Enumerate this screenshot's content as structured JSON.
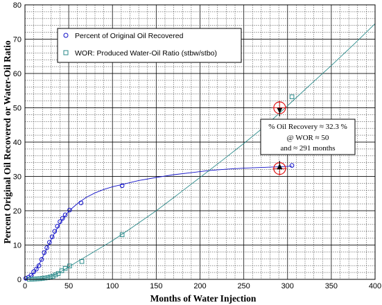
{
  "chart_data": {
    "type": "scatter",
    "xlabel": "Months of Water Injection",
    "ylabel": "Percent Original Oil Recovered  or  Water-Oil Ratio",
    "xlim": [
      0,
      400
    ],
    "ylim": [
      0,
      80
    ],
    "x_ticks": [
      0,
      50,
      100,
      150,
      200,
      250,
      300,
      350,
      400
    ],
    "y_ticks": [
      0,
      10,
      20,
      30,
      40,
      50,
      60,
      70,
      80
    ],
    "grid": true,
    "legend_position": "top-left",
    "series": [
      {
        "name": "Percent of Original Oil Recovered",
        "marker": "circle",
        "color": "#1010c8",
        "points": [
          [
            1,
            0.3
          ],
          [
            4,
            0.6
          ],
          [
            7,
            1.2
          ],
          [
            10,
            2.2
          ],
          [
            13,
            3.0
          ],
          [
            16,
            4.0
          ],
          [
            19,
            5.8
          ],
          [
            22,
            7.8
          ],
          [
            25,
            9.2
          ],
          [
            28,
            10.8
          ],
          [
            31,
            12.4
          ],
          [
            34,
            14.0
          ],
          [
            37,
            15.5
          ],
          [
            40,
            16.8
          ],
          [
            43,
            17.8
          ],
          [
            46,
            18.8
          ],
          [
            51,
            20.2
          ],
          [
            64,
            22.3
          ],
          [
            111,
            27.3
          ],
          [
            305,
            33.2
          ]
        ],
        "curve": [
          [
            0,
            0
          ],
          [
            5,
            0.6
          ],
          [
            10,
            1.8
          ],
          [
            15,
            3.8
          ],
          [
            20,
            6.3
          ],
          [
            25,
            9.0
          ],
          [
            30,
            11.6
          ],
          [
            35,
            14.0
          ],
          [
            40,
            16.3
          ],
          [
            45,
            18.2
          ],
          [
            50,
            19.8
          ],
          [
            55,
            21.0
          ],
          [
            60,
            22.1
          ],
          [
            70,
            23.9
          ],
          [
            80,
            25.2
          ],
          [
            90,
            26.2
          ],
          [
            100,
            27.0
          ],
          [
            110,
            27.6
          ],
          [
            130,
            28.8
          ],
          [
            150,
            29.7
          ],
          [
            170,
            30.5
          ],
          [
            190,
            31.1
          ],
          [
            210,
            31.7
          ],
          [
            230,
            32.1
          ],
          [
            250,
            32.4
          ],
          [
            270,
            32.6
          ],
          [
            290,
            32.8
          ],
          [
            305,
            33.0
          ]
        ]
      },
      {
        "name": "WOR: Produced Water-Oil Ratio (stbw/stbo)",
        "marker": "square",
        "color": "#2a8a8a",
        "points": [
          [
            5,
            0.05
          ],
          [
            8,
            0.05
          ],
          [
            11,
            0.1
          ],
          [
            14,
            0.15
          ],
          [
            17,
            0.2
          ],
          [
            20,
            0.3
          ],
          [
            23,
            0.4
          ],
          [
            26,
            0.5
          ],
          [
            29,
            0.7
          ],
          [
            32,
            0.9
          ],
          [
            35,
            1.3
          ],
          [
            38,
            1.7
          ],
          [
            42,
            2.5
          ],
          [
            46,
            3.2
          ],
          [
            51,
            3.9
          ],
          [
            65,
            5.2
          ],
          [
            111,
            13.0
          ],
          [
            305,
            53.2
          ]
        ],
        "curve": [
          [
            0,
            0
          ],
          [
            20,
            0.2
          ],
          [
            30,
            0.8
          ],
          [
            40,
            2.1
          ],
          [
            50,
            3.6
          ],
          [
            60,
            5.2
          ],
          [
            80,
            8.2
          ],
          [
            100,
            11.3
          ],
          [
            120,
            14.7
          ],
          [
            150,
            20.0
          ],
          [
            175,
            24.8
          ],
          [
            200,
            29.7
          ],
          [
            225,
            34.6
          ],
          [
            250,
            39.6
          ],
          [
            275,
            44.8
          ],
          [
            300,
            50.6
          ],
          [
            325,
            56.5
          ],
          [
            350,
            62.3
          ],
          [
            375,
            68.3
          ],
          [
            400,
            74.5
          ]
        ]
      }
    ],
    "annotation": {
      "lines": [
        "% Oil Recovery ≈ 32.3 %",
        "@ WOR ≈ 50",
        "and ≈ 291 months"
      ],
      "target_x": 291,
      "targets_y": [
        32.3,
        50
      ]
    }
  }
}
